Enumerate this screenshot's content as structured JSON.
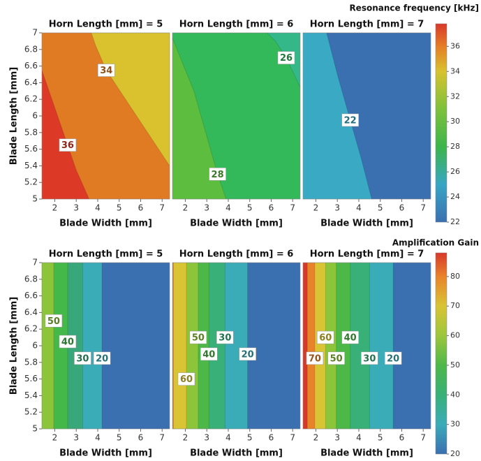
{
  "chart_data": [
    {
      "type": "contour",
      "colorbar_title": "Resonance frequency [kHz]",
      "ylabel": "Blade Length [mm]",
      "xlabel": "Blade Width [mm]",
      "xlim": [
        1.4,
        7.35
      ],
      "xticks": [
        2,
        3,
        4,
        5,
        6,
        7
      ],
      "ylim": [
        5,
        7
      ],
      "yticks": [
        5,
        5.2,
        5.4,
        5.6,
        5.8,
        6,
        6.2,
        6.4,
        6.6,
        6.8,
        7
      ],
      "clim": [
        22,
        37.8
      ],
      "cticks": [
        22,
        24,
        26,
        28,
        30,
        32,
        34,
        36
      ],
      "colorscale": [
        [
          22,
          "#3a6fb0"
        ],
        [
          25,
          "#37a6c4"
        ],
        [
          28,
          "#3cb54a"
        ],
        [
          31,
          "#7dc13c"
        ],
        [
          34,
          "#d8c22e"
        ],
        [
          36,
          "#e57e26"
        ],
        [
          37.8,
          "#d8382a"
        ]
      ],
      "panels": [
        {
          "title": "Horn Length [mm] = 5",
          "color": "#d9c22e",
          "contours": [
            {
              "level": 34,
              "color": "#e07b24",
              "x": [
                8.5,
                7.35,
                4.4,
                3.9,
                3.7
              ],
              "y": [
                5,
                5.4,
                6.55,
                6.85,
                7
              ]
            },
            {
              "level": 36,
              "color": "#dc3a26",
              "x": [
                3.6,
                3.0,
                2.6,
                1.4,
                0.8
              ],
              "y": [
                5,
                5.35,
                5.65,
                6.55,
                7
              ]
            }
          ]
        },
        {
          "title": "Horn Length [mm] = 6",
          "color": "#34b88a",
          "contours": [
            {
              "level": 26,
              "color": "#33b85a",
              "x": [
                9.0,
                7.8,
                6.7,
                6.2,
                5.8
              ],
              "y": [
                5,
                6.1,
                6.7,
                6.9,
                7
              ]
            },
            {
              "level": 28,
              "color": "#5cbd3e",
              "x": [
                3.9,
                3.7,
                3.5,
                2.4,
                1.3
              ],
              "y": [
                5,
                5.15,
                5.3,
                6.3,
                7
              ]
            }
          ]
        },
        {
          "title": "Horn Length [mm] = 7",
          "color": "#3a6fb0",
          "contours": [
            {
              "level": 22,
              "color": "#3aaac4",
              "x": [
                4.6,
                4.1,
                3.6,
                3.0,
                2.5
              ],
              "y": [
                5,
                5.5,
                5.95,
                6.5,
                7
              ]
            }
          ]
        }
      ]
    },
    {
      "type": "contour",
      "colorbar_title": "Amplification Gain",
      "ylabel": "Blade Length [mm]",
      "xlabel": "Blade Width [mm]",
      "xlim": [
        1.4,
        7.35
      ],
      "xticks": [
        2,
        3,
        4,
        5,
        6,
        7
      ],
      "ylim": [
        5,
        7
      ],
      "yticks": [
        5,
        5.2,
        5.4,
        5.6,
        5.8,
        6,
        6.2,
        6.4,
        6.6,
        6.8,
        7
      ],
      "clim": [
        20,
        88
      ],
      "cticks": [
        20,
        30,
        40,
        50,
        60,
        70,
        80
      ],
      "colorscale": [
        [
          20,
          "#3a6fb0"
        ],
        [
          30,
          "#3aacb8"
        ],
        [
          40,
          "#38b078"
        ],
        [
          50,
          "#4db848"
        ],
        [
          60,
          "#9cc63c"
        ],
        [
          70,
          "#d9c434"
        ],
        [
          80,
          "#e8832a"
        ],
        [
          88,
          "#d8382a"
        ]
      ],
      "panels": [
        {
          "title": "Horn Length [mm] = 5",
          "color": "#3a6fb0",
          "contours": [
            {
              "level": 20,
              "color": "#3aacb8",
              "x": [
                4.2,
                4.2,
                4.2
              ],
              "y": [
                5,
                5.85,
                7
              ]
            },
            {
              "level": 30,
              "color": "#38a87a",
              "x": [
                3.3,
                3.3,
                3.3
              ],
              "y": [
                5,
                5.85,
                7
              ]
            },
            {
              "level": 40,
              "color": "#45b84a",
              "x": [
                2.6,
                2.6,
                2.6
              ],
              "y": [
                5,
                6.05,
                7
              ]
            },
            {
              "level": 50,
              "color": "#8cc43a",
              "x": [
                1.95,
                1.95,
                1.95
              ],
              "y": [
                5,
                6.3,
                7
              ]
            }
          ]
        },
        {
          "title": "Horn Length [mm] = 6",
          "color": "#3a6fb0",
          "contours": [
            {
              "level": 20,
              "color": "#3aacb8",
              "x": [
                4.9,
                4.9,
                4.9
              ],
              "y": [
                5,
                5.9,
                7
              ]
            },
            {
              "level": 30,
              "color": "#38b078",
              "x": [
                3.85,
                3.85,
                3.85
              ],
              "y": [
                5,
                6.1,
                7
              ]
            },
            {
              "level": 40,
              "color": "#4db848",
              "x": [
                3.1,
                3.1,
                3.1
              ],
              "y": [
                5,
                5.9,
                7
              ]
            },
            {
              "level": 50,
              "color": "#8cc43a",
              "x": [
                2.6,
                2.6,
                2.6
              ],
              "y": [
                5,
                6.1,
                7
              ]
            },
            {
              "level": 60,
              "color": "#d9c434",
              "x": [
                2.05,
                2.05,
                2.05
              ],
              "y": [
                5,
                5.6,
                7
              ]
            },
            {
              "level": 70,
              "color": "#e8832a",
              "labeled": false,
              "x": [
                1.45,
                1.45,
                1.45
              ],
              "y": [
                5,
                6,
                7
              ]
            }
          ]
        },
        {
          "title": "Horn Length [mm] = 7",
          "color": "#3a6fb0",
          "contours": [
            {
              "level": 20,
              "color": "#3aacb8",
              "x": [
                5.6,
                5.6,
                5.6
              ],
              "y": [
                5,
                5.85,
                7
              ]
            },
            {
              "level": 30,
              "color": "#38b078",
              "x": [
                4.5,
                4.5,
                4.5
              ],
              "y": [
                5,
                5.85,
                7
              ]
            },
            {
              "level": 40,
              "color": "#4db848",
              "x": [
                3.6,
                3.6,
                3.6
              ],
              "y": [
                5,
                6.1,
                7
              ]
            },
            {
              "level": 50,
              "color": "#8cc43a",
              "x": [
                2.95,
                2.95,
                2.95
              ],
              "y": [
                5,
                5.85,
                7
              ]
            },
            {
              "level": 60,
              "color": "#d9c434",
              "x": [
                2.45,
                2.45,
                2.45
              ],
              "y": [
                5,
                6.1,
                7
              ]
            },
            {
              "level": 70,
              "color": "#e8832a",
              "x": [
                1.95,
                1.95,
                1.95
              ],
              "y": [
                5,
                5.85,
                7
              ]
            },
            {
              "level": 80,
              "color": "#d8382a",
              "labeled": false,
              "x": [
                1.6,
                1.6,
                1.6
              ],
              "y": [
                5,
                6,
                7
              ]
            }
          ]
        }
      ]
    }
  ]
}
